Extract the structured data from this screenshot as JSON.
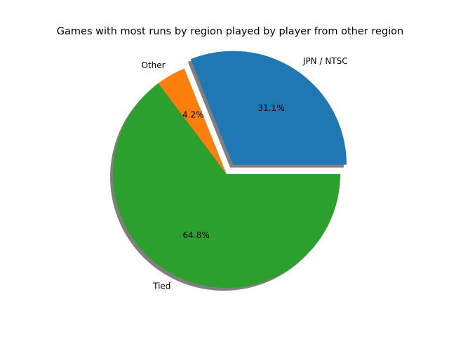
{
  "chart_data": {
    "type": "pie",
    "title": "Games with most runs by region played by player from other region",
    "slices": [
      {
        "label": "JPN / NTSC",
        "value": 31.1,
        "pct_label": "31.1%",
        "color": "#1f77b4",
        "exploded": true
      },
      {
        "label": "Other",
        "value": 4.2,
        "pct_label": "4.2%",
        "color": "#ff7f0e",
        "exploded": false
      },
      {
        "label": "Tied",
        "value": 64.8,
        "pct_label": "64.8%",
        "color": "#2ca02c",
        "exploded": false
      }
    ],
    "start_angle_deg": 0,
    "direction": "counterclockwise",
    "shadow": true,
    "legend": "none"
  }
}
